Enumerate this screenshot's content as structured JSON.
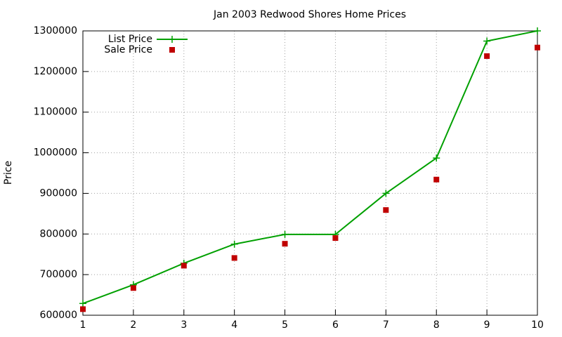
{
  "chart_data": {
    "type": "line",
    "title": "Jan 2003 Redwood Shores Home Prices",
    "ylabel": "Price",
    "x": [
      1,
      2,
      3,
      4,
      5,
      6,
      7,
      8,
      9,
      10
    ],
    "series": [
      {
        "name": "List Price",
        "color": "#00a000",
        "mode": "lines+markers",
        "values": [
          629000,
          675000,
          728000,
          775000,
          799000,
          799000,
          900000,
          987000,
          1275000,
          1300000
        ]
      },
      {
        "name": "Sale Price",
        "color": "#c00000",
        "mode": "markers",
        "values": [
          615000,
          667000,
          722000,
          741000,
          776000,
          790000,
          859000,
          934000,
          1238000,
          1259000
        ]
      }
    ],
    "xlim": [
      1,
      10
    ],
    "xticks": [
      1,
      2,
      3,
      4,
      5,
      6,
      7,
      8,
      9,
      10
    ],
    "ylim": [
      600000,
      1300000
    ],
    "yticks": [
      600000,
      700000,
      800000,
      900000,
      1000000,
      1100000,
      1200000,
      1300000
    ],
    "grid": true,
    "legend": "top-left"
  }
}
